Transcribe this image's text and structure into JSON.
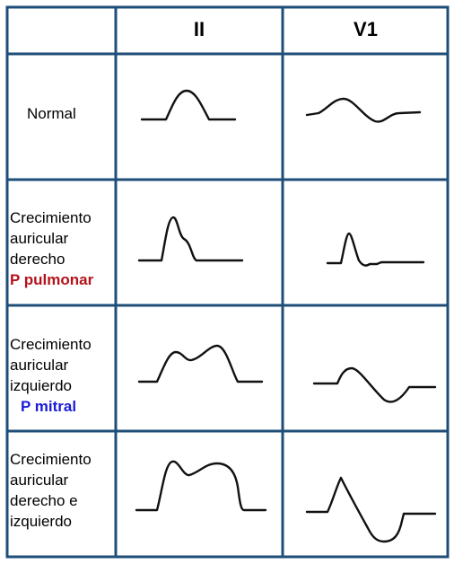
{
  "header": {
    "col_lead": "II",
    "col_v1": "V1"
  },
  "rows": [
    {
      "label_lines": [
        "Normal"
      ],
      "note": "",
      "note_color": ""
    },
    {
      "label_lines": [
        "Crecimiento",
        "auricular",
        "derecho"
      ],
      "note": "P pulmonar",
      "note_color": "#b5121b"
    },
    {
      "label_lines": [
        "Crecimiento",
        "auricular",
        "izquierdo"
      ],
      "note": "P mitral",
      "note_color": "#1a1adb"
    },
    {
      "label_lines": [
        "Crecimiento",
        "auricular",
        "derecho e",
        "izquierdo"
      ],
      "note": "",
      "note_color": ""
    }
  ],
  "colors": {
    "grid": "#1f4e79",
    "trace": "#111111"
  }
}
